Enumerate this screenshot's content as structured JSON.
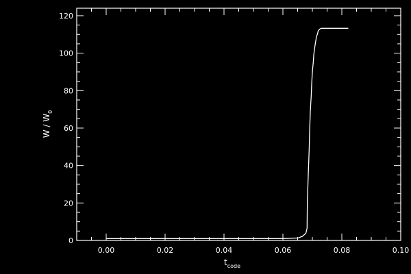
{
  "chart_data": {
    "type": "line",
    "title": "",
    "xlabel": "t",
    "xlabel_subscript": "code",
    "ylabel": "W / W",
    "ylabel_subscript": "0",
    "xlim": [
      -0.01,
      0.1
    ],
    "ylim": [
      0,
      124
    ],
    "xticks": [
      "0.00",
      "0.02",
      "0.04",
      "0.06",
      "0.08",
      "0.10"
    ],
    "yticks": [
      "0",
      "20",
      "40",
      "60",
      "80",
      "100",
      "120"
    ],
    "x_minor_step": 0.005,
    "y_minor_step": 5,
    "grid": false,
    "background": "#000000",
    "line_color": "#ffffff",
    "series": [
      {
        "x": [
          0.0,
          0.06,
          0.0652,
          0.0666,
          0.0678,
          0.0682,
          0.0683,
          0.0686,
          0.0689,
          0.0691,
          0.0693,
          0.0696,
          0.0698,
          0.07,
          0.0703,
          0.0705,
          0.0707,
          0.071,
          0.0712,
          0.0714,
          0.0717,
          0.072,
          0.0726,
          0.073,
          0.0822
        ],
        "y": [
          1.0,
          1.0,
          1.3,
          2.2,
          3.8,
          6.5,
          21,
          35,
          48,
          59,
          69,
          77,
          84,
          90,
          95,
          99,
          102,
          105,
          107,
          109,
          110,
          112,
          113,
          113.3,
          113.3
        ]
      }
    ]
  }
}
